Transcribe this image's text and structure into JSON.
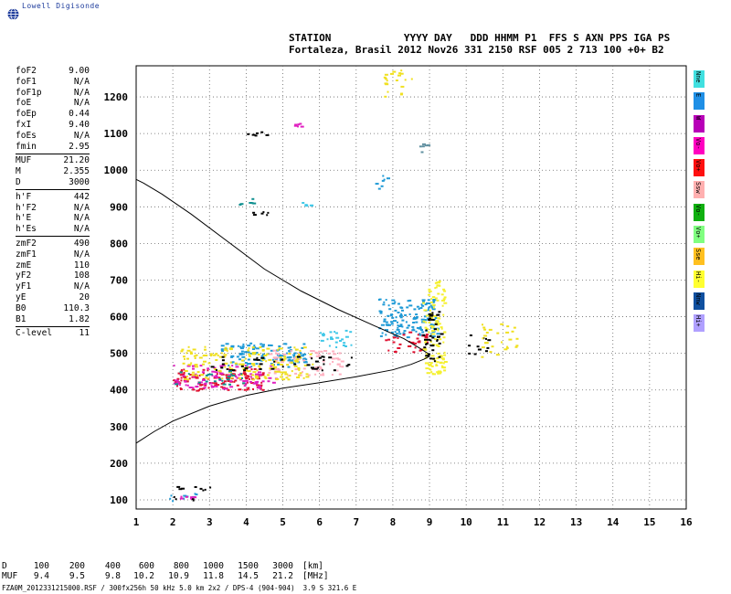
{
  "logo": {
    "text": "Lowell Digisonde",
    "icon": "globe-icon"
  },
  "header": {
    "line1": "STATION            YYYY DAY   DDD HHMM P1  FFS S AXN PPS IGA PS",
    "line2": "Fortaleza, Brasil 2012 Nov26 331 2150 RSF 005 2 713 100 +0+ B2"
  },
  "params": [
    {
      "name": "foF2",
      "value": "9.00"
    },
    {
      "name": "foF1",
      "value": "N/A"
    },
    {
      "name": "foF1p",
      "value": "N/A"
    },
    {
      "name": "foE",
      "value": "N/A"
    },
    {
      "name": "foEp",
      "value": "0.44"
    },
    {
      "name": "fxI",
      "value": "9.40"
    },
    {
      "name": "foEs",
      "value": "N/A"
    },
    {
      "name": "fmin",
      "value": "2.95"
    },
    {
      "sep": true
    },
    {
      "name": "MUF",
      "value": "21.20"
    },
    {
      "name": "M",
      "value": "2.355"
    },
    {
      "name": "D",
      "value": "3000"
    },
    {
      "sep": true
    },
    {
      "name": "h'F",
      "value": "442"
    },
    {
      "name": "h'F2",
      "value": "N/A"
    },
    {
      "name": "h'E",
      "value": "N/A"
    },
    {
      "name": "h'Es",
      "value": "N/A"
    },
    {
      "sep": true
    },
    {
      "name": "zmF2",
      "value": "490"
    },
    {
      "name": "zmF1",
      "value": "N/A"
    },
    {
      "name": "zmE",
      "value": "110"
    },
    {
      "name": "yF2",
      "value": "108"
    },
    {
      "name": "yF1",
      "value": "N/A"
    },
    {
      "name": "yE",
      "value": "20"
    },
    {
      "name": "B0",
      "value": "110.3"
    },
    {
      "name": "B1",
      "value": "1.82"
    },
    {
      "sep": true
    },
    {
      "name": "C-level",
      "value": "11"
    }
  ],
  "legend": [
    {
      "label": "Nne",
      "color": "#40e0e0"
    },
    {
      "label": "E",
      "color": "#1f8fe6"
    },
    {
      "label": "W",
      "color": "#b800b8"
    },
    {
      "label": "Vo-",
      "color": "#ff00c0"
    },
    {
      "label": "Vo+",
      "color": "#ff1010"
    },
    {
      "label": "Ssw",
      "color": "#ffb0b0"
    },
    {
      "label": "Vo-",
      "color": "#10b010"
    },
    {
      "label": "Vo+",
      "color": "#80ff80"
    },
    {
      "label": "Sse",
      "color": "#ffc020"
    },
    {
      "label": "Hi-",
      "color": "#ffff30"
    },
    {
      "label": "Nnw",
      "color": "#1050a0"
    },
    {
      "label": "Hi+",
      "color": "#b0a0ff"
    }
  ],
  "muf_table": {
    "d_label": "D",
    "d_values": [
      "100",
      "200",
      "400",
      "600",
      "800",
      "1000",
      "1500",
      "3000"
    ],
    "d_unit": "[km]",
    "muf_label": "MUF",
    "muf_values": [
      "9.4",
      "9.5",
      "9.8",
      "10.2",
      "10.9",
      "11.8",
      "14.5",
      "21.2"
    ],
    "muf_unit": "[MHz]"
  },
  "footer": "FZA0M_2012331215000.RSF / 300fx256h 50 kHz 5.0 km 2x2 / DPS-4 (904-904)  3.9 S 321.6 E",
  "chart_data": {
    "type": "scatter",
    "xlim": [
      1,
      16
    ],
    "ylim": [
      75,
      1285
    ],
    "xticks": [
      1,
      2,
      3,
      4,
      5,
      6,
      7,
      8,
      9,
      10,
      11,
      12,
      13,
      14,
      15,
      16
    ],
    "yticks": [
      100,
      200,
      300,
      400,
      500,
      600,
      700,
      800,
      900,
      1000,
      1100,
      1200
    ],
    "grid": true,
    "profile_curve": [
      [
        1.0,
        255
      ],
      [
        1.5,
        287
      ],
      [
        2.0,
        315
      ],
      [
        3.0,
        356
      ],
      [
        4.0,
        385
      ],
      [
        5.0,
        405
      ],
      [
        6.0,
        420
      ],
      [
        7.0,
        436
      ],
      [
        8.0,
        455
      ],
      [
        8.5,
        470
      ],
      [
        8.85,
        484
      ],
      [
        9.0,
        492
      ],
      [
        8.95,
        500
      ],
      [
        8.7,
        516
      ],
      [
        8.3,
        540
      ],
      [
        7.5,
        575
      ],
      [
        6.5,
        620
      ],
      [
        5.5,
        670
      ],
      [
        4.5,
        730
      ],
      [
        3.5,
        805
      ],
      [
        2.5,
        880
      ],
      [
        1.7,
        935
      ],
      [
        1.2,
        965
      ],
      [
        1.0,
        975
      ]
    ],
    "echo_clusters": [
      {
        "name": "F-trace cyan",
        "color": "#1f9ad6",
        "x": [
          3.3,
          5.6
        ],
        "y": [
          465,
          530
        ],
        "density": 3
      },
      {
        "name": "F-trace cyan 2",
        "color": "#40c8e8",
        "x": [
          6.0,
          6.9
        ],
        "y": [
          515,
          565
        ],
        "density": 2
      },
      {
        "name": "F2 cusp cyan",
        "color": "#1f9ad6",
        "x": [
          7.6,
          9.2
        ],
        "y": [
          545,
          650
        ],
        "density": 3
      },
      {
        "name": "F-trace red",
        "color": "#e01030",
        "x": [
          2.0,
          4.5
        ],
        "y": [
          400,
          460
        ],
        "density": 3
      },
      {
        "name": "F-trace magenta",
        "color": "#e020c0",
        "x": [
          2.0,
          4.8
        ],
        "y": [
          405,
          470
        ],
        "density": 2
      },
      {
        "name": "F-trace pink",
        "color": "#ffb0c0",
        "x": [
          4.5,
          6.6
        ],
        "y": [
          440,
          510
        ],
        "density": 2
      },
      {
        "name": "F-trace yellow",
        "color": "#f0e020",
        "x": [
          2.2,
          5.8
        ],
        "y": [
          430,
          520
        ],
        "density": 2
      },
      {
        "name": "F-trace black",
        "color": "#000000",
        "x": [
          3.0,
          6.9
        ],
        "y": [
          455,
          495
        ],
        "density": 1
      },
      {
        "name": "F2 red",
        "color": "#e01030",
        "x": [
          7.7,
          8.9
        ],
        "y": [
          505,
          560
        ],
        "density": 2
      },
      {
        "name": "F2 yellow",
        "color": "#f5f030",
        "x": [
          8.8,
          9.4
        ],
        "y": [
          440,
          700
        ],
        "density": 3
      },
      {
        "name": "F2 black",
        "color": "#000000",
        "x": [
          8.8,
          9.3
        ],
        "y": [
          480,
          620
        ],
        "density": 2
      },
      {
        "name": "F-trace teal",
        "color": "#109090",
        "x": [
          2.0,
          4.0
        ],
        "y": [
          415,
          455
        ],
        "density": 1
      },
      {
        "name": "E cyan",
        "color": "#1f9ad6",
        "x": [
          1.9,
          2.7
        ],
        "y": [
          98,
          120
        ],
        "density": 2
      },
      {
        "name": "E black",
        "color": "#000000",
        "x": [
          2.0,
          3.0
        ],
        "y": [
          100,
          145
        ],
        "density": 1
      },
      {
        "name": "E pink",
        "color": "#e020c0",
        "x": [
          2.0,
          2.6
        ],
        "y": [
          100,
          112
        ],
        "density": 1
      },
      {
        "name": "Multi cyan",
        "color": "#40c8e8",
        "x": [
          5.5,
          5.9
        ],
        "y": [
          905,
          915
        ],
        "density": 1
      },
      {
        "name": "Multi yellow",
        "color": "#f0e020",
        "x": [
          7.6,
          8.6
        ],
        "y": [
          1200,
          1275
        ],
        "density": 1
      },
      {
        "name": "Multi blue",
        "color": "#1f9ad6",
        "x": [
          7.5,
          8.0
        ],
        "y": [
          950,
          1000
        ],
        "density": 1
      },
      {
        "name": "Multi black",
        "color": "#000000",
        "x": [
          4.0,
          4.6
        ],
        "y": [
          1095,
          1110
        ],
        "density": 1
      },
      {
        "name": "Multi black 2",
        "color": "#000000",
        "x": [
          4.1,
          4.6
        ],
        "y": [
          880,
          890
        ],
        "density": 1
      },
      {
        "name": "Multi pink",
        "color": "#e020c0",
        "x": [
          5.3,
          5.5
        ],
        "y": [
          1120,
          1130
        ],
        "density": 1
      },
      {
        "name": "Multi grey",
        "color": "#6090a0",
        "x": [
          8.7,
          9.2
        ],
        "y": [
          1050,
          1080
        ],
        "density": 1
      },
      {
        "name": "Multi teal",
        "color": "#109090",
        "x": [
          3.8,
          4.2
        ],
        "y": [
          900,
          925
        ],
        "density": 1
      },
      {
        "name": "Far echoes",
        "color": "#000000",
        "x": [
          10.0,
          10.6
        ],
        "y": [
          490,
          560
        ],
        "density": 1
      },
      {
        "name": "Far yellow",
        "color": "#f0e020",
        "x": [
          10.3,
          11.4
        ],
        "y": [
          490,
          585
        ],
        "density": 1
      }
    ]
  }
}
